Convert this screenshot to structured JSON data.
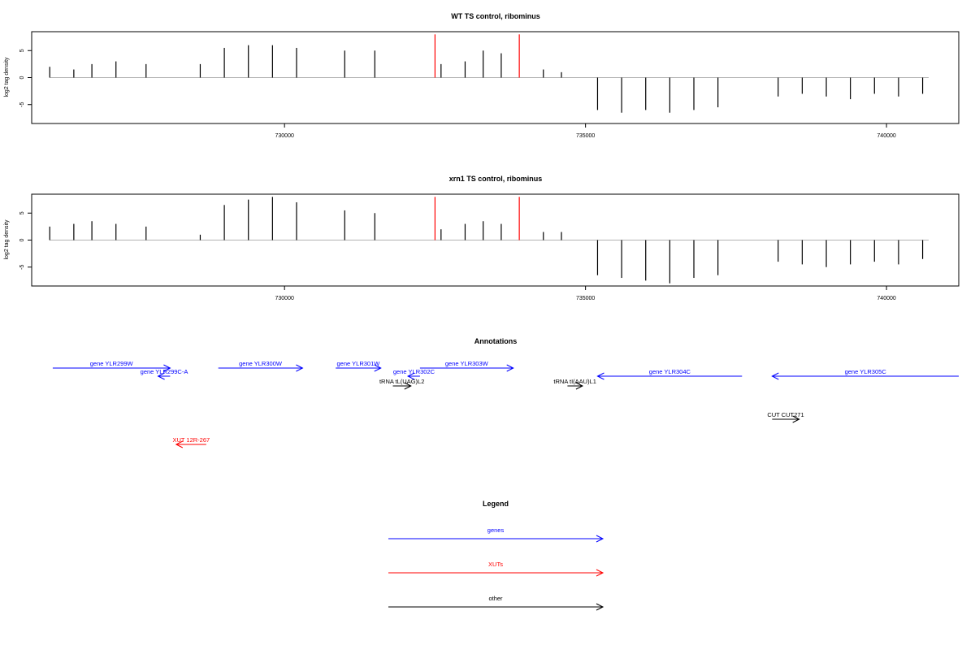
{
  "chart_data": [
    {
      "type": "bar",
      "title": "WT TS control, ribominus",
      "ylabel": "log2 tag density",
      "xlim": [
        725800,
        741200
      ],
      "ylim": [
        -8.5,
        8.5
      ],
      "x_ticks": [
        730000,
        735000,
        740000
      ],
      "x_tick_labels": [
        "730000",
        "735000",
        "740000"
      ],
      "y_ticks": [
        5,
        0,
        -5
      ],
      "y_tick_labels": [
        "5",
        "0",
        "-5"
      ],
      "series": [
        {
          "color": "#000000",
          "x": [
            726100,
            726500,
            726800,
            727200,
            727700,
            728600,
            729000,
            729400,
            729800,
            730200,
            731000,
            731500,
            732600,
            733000,
            733300,
            733600,
            734300,
            734600,
            735200,
            735600,
            736000,
            736400,
            736800,
            737200,
            738200,
            738600,
            739000,
            739400,
            739800,
            740200,
            740600
          ],
          "values": [
            2,
            1.5,
            2.5,
            3,
            2.5,
            2.5,
            5.5,
            6,
            6,
            5.5,
            5,
            5,
            2.5,
            3,
            5,
            4.5,
            1.5,
            1,
            -6,
            -6.5,
            -6,
            -6.5,
            -6,
            -5.5,
            -3.5,
            -3,
            -3.5,
            -4,
            -3,
            -3.5,
            -3
          ]
        },
        {
          "name": "",
          "color": "#ff0000",
          "x": [
            732500,
            733900
          ],
          "values": [
            8,
            8
          ]
        }
      ]
    },
    {
      "type": "bar",
      "title": "xrn1 TS control, ribominus",
      "ylabel": "log2 tag density",
      "xlim": [
        725800,
        741200
      ],
      "ylim": [
        -8.5,
        8.5
      ],
      "x_ticks": [
        730000,
        735000,
        740000
      ],
      "x_tick_labels": [
        "730000",
        "735000",
        "740000"
      ],
      "y_ticks": [
        5,
        0,
        -5
      ],
      "y_tick_labels": [
        "5",
        "0",
        "-5"
      ],
      "series": [
        {
          "color": "#000000",
          "x": [
            726100,
            726500,
            726800,
            727200,
            727700,
            728600,
            729000,
            729400,
            729800,
            730200,
            731000,
            731500,
            732600,
            733000,
            733300,
            733600,
            734300,
            734600,
            735200,
            735600,
            736000,
            736400,
            736800,
            737200,
            738200,
            738600,
            739000,
            739400,
            739800,
            740200,
            740600
          ],
          "values": [
            2.5,
            3,
            3.5,
            3,
            2.5,
            1,
            6.5,
            7.5,
            8,
            7,
            5.5,
            5,
            2,
            3,
            3.5,
            3,
            1.5,
            1.5,
            -6.5,
            -7,
            -7.5,
            -8,
            -7,
            -6.5,
            -4,
            -4.5,
            -5,
            -4.5,
            -4,
            -4.5,
            -3.5
          ]
        },
        {
          "name": "",
          "color": "#ff0000",
          "x": [
            732500,
            733900
          ],
          "values": [
            8,
            8
          ]
        }
      ]
    }
  ],
  "annotations": {
    "title": "Annotations",
    "features": [
      {
        "label": "gene YLR299W",
        "kind": "genes",
        "strand": "+",
        "start": 726150,
        "end": 728100,
        "row": 0
      },
      {
        "label": "gene YLR299C-A",
        "kind": "genes",
        "strand": "-",
        "start": 727900,
        "end": 728100,
        "row": 1
      },
      {
        "label": "gene YLR300W",
        "kind": "genes",
        "strand": "+",
        "start": 728900,
        "end": 730300,
        "row": 0
      },
      {
        "label": "gene YLR301W",
        "kind": "genes",
        "strand": "+",
        "start": 730850,
        "end": 731600,
        "row": 0
      },
      {
        "label": "gene YLR302C",
        "kind": "genes",
        "strand": "-",
        "start": 732050,
        "end": 732250,
        "row": 1
      },
      {
        "label": "gene YLR303W",
        "kind": "genes",
        "strand": "+",
        "start": 732250,
        "end": 733800,
        "row": 0
      },
      {
        "label": "gene YLR304C",
        "kind": "genes",
        "strand": "-",
        "start": 735200,
        "end": 737600,
        "row": 1
      },
      {
        "label": "gene YLR305C",
        "kind": "genes",
        "strand": "-",
        "start": 738100,
        "end": 741200,
        "row": 1
      },
      {
        "label": "tRNA tL(UAG)L2",
        "kind": "other",
        "strand": "+",
        "start": 731800,
        "end": 732100,
        "row": 2
      },
      {
        "label": "tRNA tI(AAU)L1",
        "kind": "other",
        "strand": "+",
        "start": 734700,
        "end": 734950,
        "row": 2
      },
      {
        "label": "CUT CUT271",
        "kind": "other",
        "strand": "+",
        "start": 738100,
        "end": 738550,
        "row": 3
      },
      {
        "label": "XUT 12R-267",
        "kind": "XUTs",
        "strand": "-",
        "start": 728200,
        "end": 728700,
        "row": 4
      }
    ]
  },
  "legend": {
    "title": "Legend",
    "items": [
      {
        "label": "genes",
        "color": "#0000ff"
      },
      {
        "label": "XUTs",
        "color": "#ff0000"
      },
      {
        "label": "other",
        "color": "#000000"
      }
    ]
  }
}
